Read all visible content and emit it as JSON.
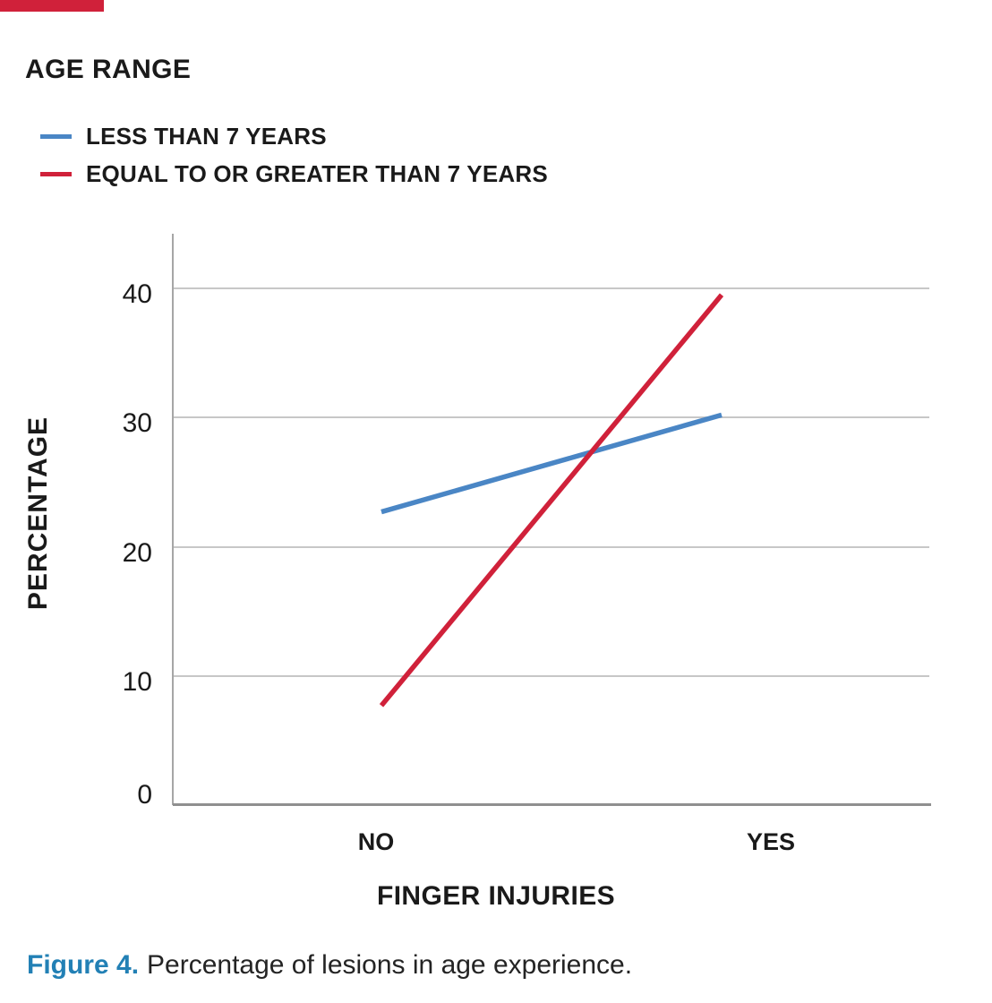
{
  "page": {
    "accent_bar_color": "#d0213a"
  },
  "chart_data": {
    "type": "line",
    "title": "AGE RANGE",
    "categories": [
      "NO",
      "YES"
    ],
    "series": [
      {
        "name": "LESS THAN 7 YEARS",
        "color": "#4a86c5",
        "values": [
          22.7,
          30.2
        ]
      },
      {
        "name": "EQUAL TO OR GREATER THAN 7 YEARS",
        "color": "#d0213a",
        "values": [
          7.7,
          39.5
        ]
      }
    ],
    "xlabel": "FINGER INJURIES",
    "ylabel": "PERCENTAGE",
    "yticks": [
      0,
      10,
      20,
      30,
      40
    ],
    "ylim": [
      0,
      44
    ],
    "grid": "horizontal-gridlines",
    "legend_position": "top-left"
  },
  "caption": {
    "label": "Figure 4.",
    "text": "Percentage of lesions in age experience."
  },
  "colors": {
    "grid": "#c7c7c7",
    "y_axis": "#a6a6a6",
    "x_axis": "#8f8f8f",
    "text": "#1a1a1a",
    "caption_label": "#2280b5"
  }
}
